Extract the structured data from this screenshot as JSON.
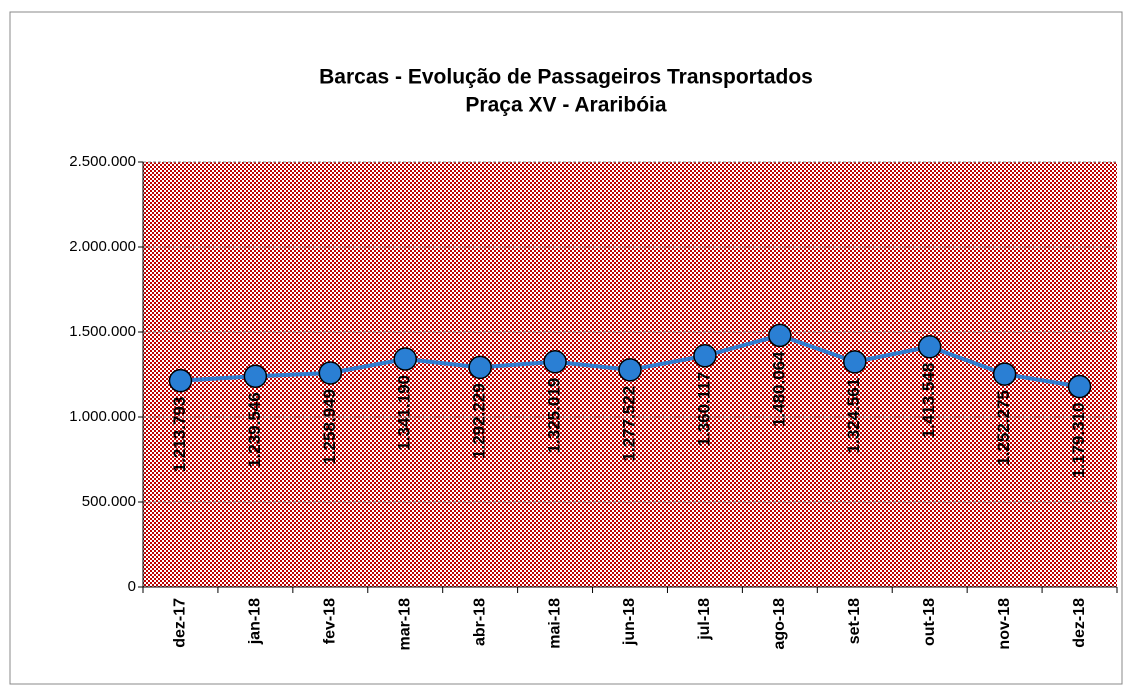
{
  "chart_data": {
    "type": "line",
    "title": "Barcas - Evolução de Passageiros Transportados",
    "subtitle": "Praça XV - Araribóia",
    "categories": [
      "dez-17",
      "jan-18",
      "fev-18",
      "mar-18",
      "abr-18",
      "mai-18",
      "jun-18",
      "jul-18",
      "ago-18",
      "set-18",
      "out-18",
      "nov-18",
      "dez-18"
    ],
    "series": [
      {
        "name": "Passageiros",
        "color": "#2f7ccf",
        "marker_color": "#2a7fd4",
        "values": [
          1213793,
          1239546,
          1258949,
          1341190,
          1292229,
          1325019,
          1277522,
          1360117,
          1480064,
          1324561,
          1413548,
          1252275,
          1179310
        ],
        "value_labels": [
          "1.213.793",
          "1.239.546",
          "1.258.949",
          "1.341.190",
          "1.292.229",
          "1.325.019",
          "1.277.522",
          "1.360.117",
          "1.480.064",
          "1.324.561",
          "1.413.548",
          "1.252.275",
          "1.179.310"
        ]
      }
    ],
    "ylim": [
      0,
      2500000
    ],
    "yticks": [
      0,
      {
        "value": 500000,
        "label": "500.000"
      },
      {
        "value": 1000000,
        "label": "1.000.000"
      },
      {
        "value": 1500000,
        "label": "1.500.000"
      },
      {
        "value": 2000000,
        "label": "2.000.000"
      },
      {
        "value": 2500000,
        "label": "2.500.000"
      }
    ],
    "grid": true,
    "plot_background": "#c00000"
  }
}
